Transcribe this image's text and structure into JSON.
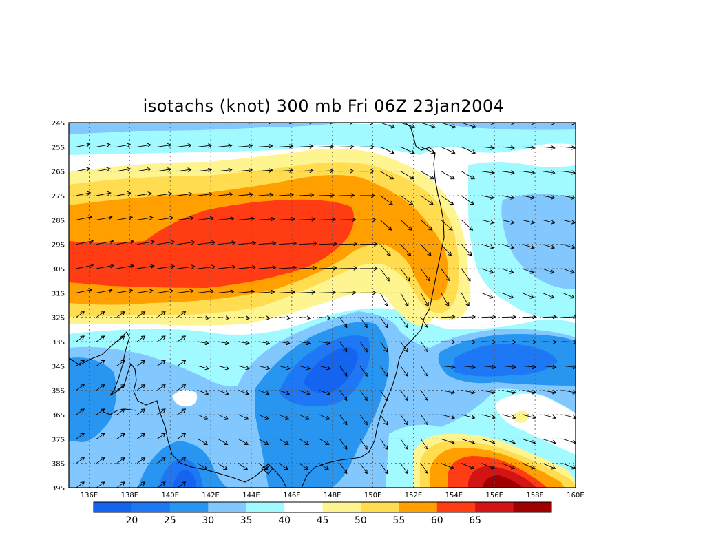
{
  "title": "isotachs (knot) 300 mb Fri 06Z 23jan2004",
  "map": {
    "lon_range": [
      135,
      160
    ],
    "lat_range": [
      -39,
      -24
    ],
    "lon_ticks": [
      "136E",
      "138E",
      "140E",
      "142E",
      "144E",
      "146E",
      "148E",
      "150E",
      "152E",
      "154E",
      "156E",
      "158E",
      "160E"
    ],
    "lat_ticks": [
      "24S",
      "25S",
      "26S",
      "27S",
      "28S",
      "29S",
      "30S",
      "31S",
      "32S",
      "33S",
      "34S",
      "35S",
      "36S",
      "37S",
      "38S",
      "39S"
    ],
    "grid": true
  },
  "colorbar": {
    "bins": [
      {
        "color": "#1464f0"
      },
      {
        "color": "#1e78f5"
      },
      {
        "color": "#2896f0"
      },
      {
        "color": "#82c8ff"
      },
      {
        "color": "#a0faff"
      },
      {
        "color": "#ffffff"
      },
      {
        "color": "#fff590"
      },
      {
        "color": "#ffdc50"
      },
      {
        "color": "#ffa000"
      },
      {
        "color": "#ff3c14"
      },
      {
        "color": "#d21414"
      },
      {
        "color": "#a00000"
      }
    ],
    "labels": [
      "20",
      "25",
      "30",
      "35",
      "40",
      "45",
      "50",
      "55",
      "60",
      "65"
    ]
  },
  "palette": {
    "15": "#1464f0",
    "20": "#1e78f5",
    "25": "#2896f0",
    "30": "#82c8ff",
    "35": "#a0faff",
    "40": "#ffffff",
    "45": "#fff590",
    "50": "#ffdc50",
    "55": "#ffa000",
    "60": "#ff3c14",
    "65": "#d21414"
  }
}
